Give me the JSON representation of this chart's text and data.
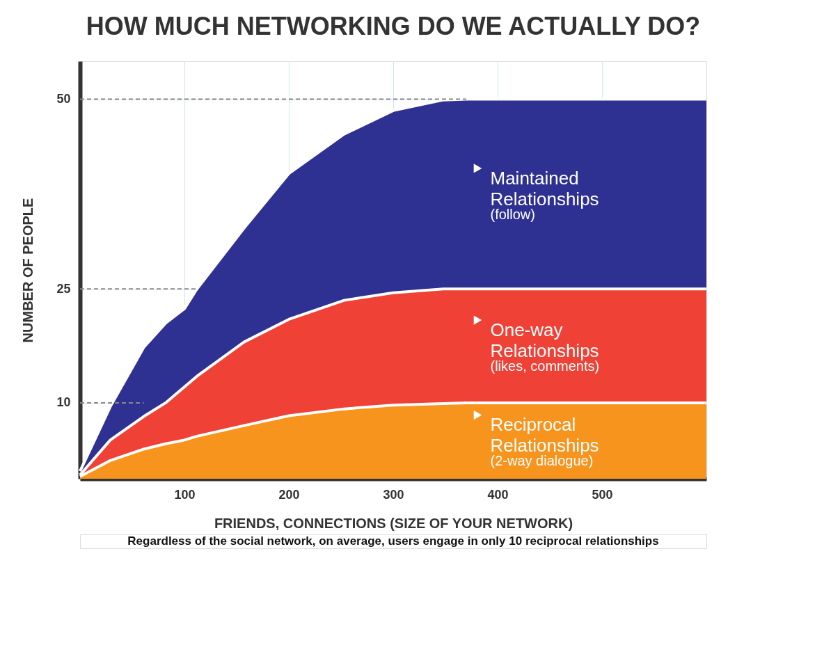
{
  "chart_data": {
    "type": "area",
    "title": "HOW MUCH NETWORKING DO WE ACTUALLY DO?",
    "xlabel": "FRIENDS, CONNECTIONS (SIZE OF YOUR NETWORK)",
    "ylabel": "NUMBER OF PEOPLE",
    "x": [
      0,
      29,
      61,
      82,
      100,
      112,
      157,
      200,
      253,
      300,
      348,
      370,
      400,
      600
    ],
    "series": [
      {
        "name": "Maintained Relationships (follow)",
        "color": "#2e3192",
        "values": [
          1,
          9.5,
          17.3,
          20.5,
          22.4,
          25,
          33,
          40.2,
          45.4,
          48.5,
          49.9,
          50,
          50,
          50
        ]
      },
      {
        "name": "One-way Relationships (likes, comments)",
        "color": "#ef4136",
        "values": [
          0.5,
          5.1,
          8.2,
          10,
          12.1,
          13.5,
          18,
          21,
          23.5,
          24.5,
          25,
          25,
          25,
          25
        ]
      },
      {
        "name": "Reciprocal Relationships (2-way dialogue)",
        "color": "#f7941d",
        "values": [
          0.3,
          2.4,
          3.9,
          4.6,
          5.1,
          5.6,
          7,
          8.3,
          9.2,
          9.7,
          9.9,
          10,
          10,
          10
        ]
      }
    ],
    "xlim": [
      0,
      600
    ],
    "xticks": [
      100,
      200,
      300,
      400,
      500
    ],
    "ylim": [
      0,
      55
    ],
    "yticks": [
      10,
      25,
      50
    ],
    "ref_lines": [
      {
        "axis": "y",
        "value": 10,
        "color": "#888888",
        "line_style": "dashed"
      },
      {
        "axis": "y",
        "value": 25,
        "color": "#888888",
        "line_style": "dashed"
      },
      {
        "axis": "y",
        "value": 50,
        "color": "#888888",
        "line_style": "dashed"
      }
    ],
    "grid": true,
    "legend": "right",
    "annotations": [
      "Regardless of the social network, on average, users engage in only 10 reciprocal relationships"
    ]
  }
}
